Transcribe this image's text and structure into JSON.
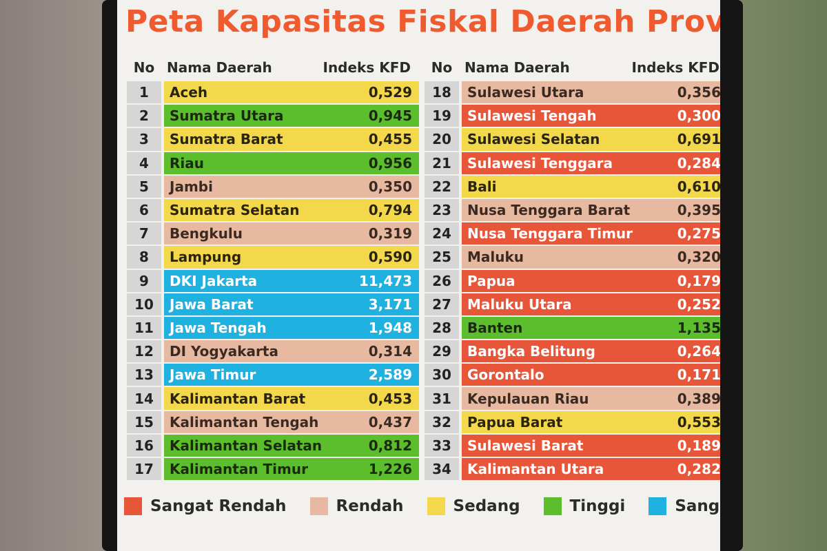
{
  "title": "Peta Kapasitas Fiskal Daerah Provins",
  "headers": {
    "left": {
      "no": "No",
      "name": "Nama Daerah",
      "index": "Indeks KFD"
    },
    "right": {
      "no": "No",
      "name": "Nama Daerah",
      "index": "Indeks KFD"
    }
  },
  "colors": {
    "sangat_rendah": "#e8563a",
    "rendah": "#e7b9a0",
    "sedang": "#f2d84a",
    "tinggi": "#5cbe2c",
    "sangat_tinggi": "#1fb1e0"
  },
  "left_rows": [
    {
      "no": "1",
      "name": "Aceh",
      "value": "0,529",
      "category": "sedang"
    },
    {
      "no": "2",
      "name": "Sumatra Utara",
      "value": "0,945",
      "category": "tinggi"
    },
    {
      "no": "3",
      "name": "Sumatra Barat",
      "value": "0,455",
      "category": "sedang"
    },
    {
      "no": "4",
      "name": "Riau",
      "value": "0,956",
      "category": "tinggi"
    },
    {
      "no": "5",
      "name": "Jambi",
      "value": "0,350",
      "category": "rendah"
    },
    {
      "no": "6",
      "name": "Sumatra Selatan",
      "value": "0,794",
      "category": "sedang"
    },
    {
      "no": "7",
      "name": "Bengkulu",
      "value": "0,319",
      "category": "rendah"
    },
    {
      "no": "8",
      "name": "Lampung",
      "value": "0,590",
      "category": "sedang"
    },
    {
      "no": "9",
      "name": "DKI Jakarta",
      "value": "11,473",
      "category": "sangat_tinggi"
    },
    {
      "no": "10",
      "name": "Jawa Barat",
      "value": "3,171",
      "category": "sangat_tinggi"
    },
    {
      "no": "11",
      "name": "Jawa Tengah",
      "value": "1,948",
      "category": "sangat_tinggi"
    },
    {
      "no": "12",
      "name": "DI Yogyakarta",
      "value": "0,314",
      "category": "rendah"
    },
    {
      "no": "13",
      "name": "Jawa Timur",
      "value": "2,589",
      "category": "sangat_tinggi"
    },
    {
      "no": "14",
      "name": "Kalimantan Barat",
      "value": "0,453",
      "category": "sedang"
    },
    {
      "no": "15",
      "name": "Kalimantan Tengah",
      "value": "0,437",
      "category": "rendah"
    },
    {
      "no": "16",
      "name": "Kalimantan Selatan",
      "value": "0,812",
      "category": "tinggi"
    },
    {
      "no": "17",
      "name": "Kalimantan Timur",
      "value": "1,226",
      "category": "tinggi"
    }
  ],
  "right_rows": [
    {
      "no": "18",
      "name": "Sulawesi Utara",
      "value": "0,356",
      "category": "rendah"
    },
    {
      "no": "19",
      "name": "Sulawesi Tengah",
      "value": "0,300",
      "category": "sangat_rendah"
    },
    {
      "no": "20",
      "name": "Sulawesi Selatan",
      "value": "0,691",
      "category": "sedang"
    },
    {
      "no": "21",
      "name": "Sulawesi Tenggara",
      "value": "0,284",
      "category": "sangat_rendah"
    },
    {
      "no": "22",
      "name": "Bali",
      "value": "0,610",
      "category": "sedang"
    },
    {
      "no": "23",
      "name": "Nusa Tenggara Barat",
      "value": "0,395",
      "category": "rendah"
    },
    {
      "no": "24",
      "name": "Nusa Tenggara Timur",
      "value": "0,275",
      "category": "sangat_rendah"
    },
    {
      "no": "25",
      "name": "Maluku",
      "value": "0,320",
      "category": "rendah"
    },
    {
      "no": "26",
      "name": "Papua",
      "value": "0,179",
      "category": "sangat_rendah"
    },
    {
      "no": "27",
      "name": "Maluku Utara",
      "value": "0,252",
      "category": "sangat_rendah"
    },
    {
      "no": "28",
      "name": "Banten",
      "value": "1,135",
      "category": "tinggi"
    },
    {
      "no": "29",
      "name": "Bangka Belitung",
      "value": "0,264",
      "category": "sangat_rendah"
    },
    {
      "no": "30",
      "name": "Gorontalo",
      "value": "0,171",
      "category": "sangat_rendah"
    },
    {
      "no": "31",
      "name": "Kepulauan Riau",
      "value": "0,389",
      "category": "rendah"
    },
    {
      "no": "32",
      "name": "Papua Barat",
      "value": "0,553",
      "category": "sedang"
    },
    {
      "no": "33",
      "name": "Sulawesi Barat",
      "value": "0,189",
      "category": "sangat_rendah"
    },
    {
      "no": "34",
      "name": "Kalimantan Utara",
      "value": "0,282",
      "category": "sangat_rendah"
    }
  ],
  "legend": [
    {
      "key": "sangat_rendah",
      "label": "Sangat Rendah"
    },
    {
      "key": "rendah",
      "label": "Rendah"
    },
    {
      "key": "sedang",
      "label": "Sedang"
    },
    {
      "key": "tinggi",
      "label": "Tinggi"
    },
    {
      "key": "sangat_tinggi",
      "label": "Sangat Ting"
    }
  ]
}
